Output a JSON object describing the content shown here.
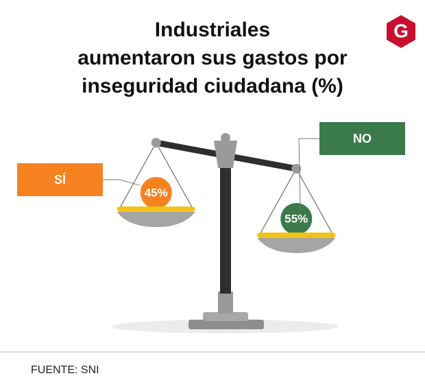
{
  "chart_data": {
    "type": "balance",
    "title": [
      "Industriales",
      "aumentaron sus gastos por",
      "inseguridad ciudadana (%)"
    ],
    "categories": [
      "SÍ",
      "NO"
    ],
    "values": [
      45,
      55
    ],
    "value_labels": [
      "45%",
      "55%"
    ],
    "colors": [
      "#f5821f",
      "#3b7a4a"
    ],
    "source": "FUENTE: SNI"
  },
  "logo": "G"
}
